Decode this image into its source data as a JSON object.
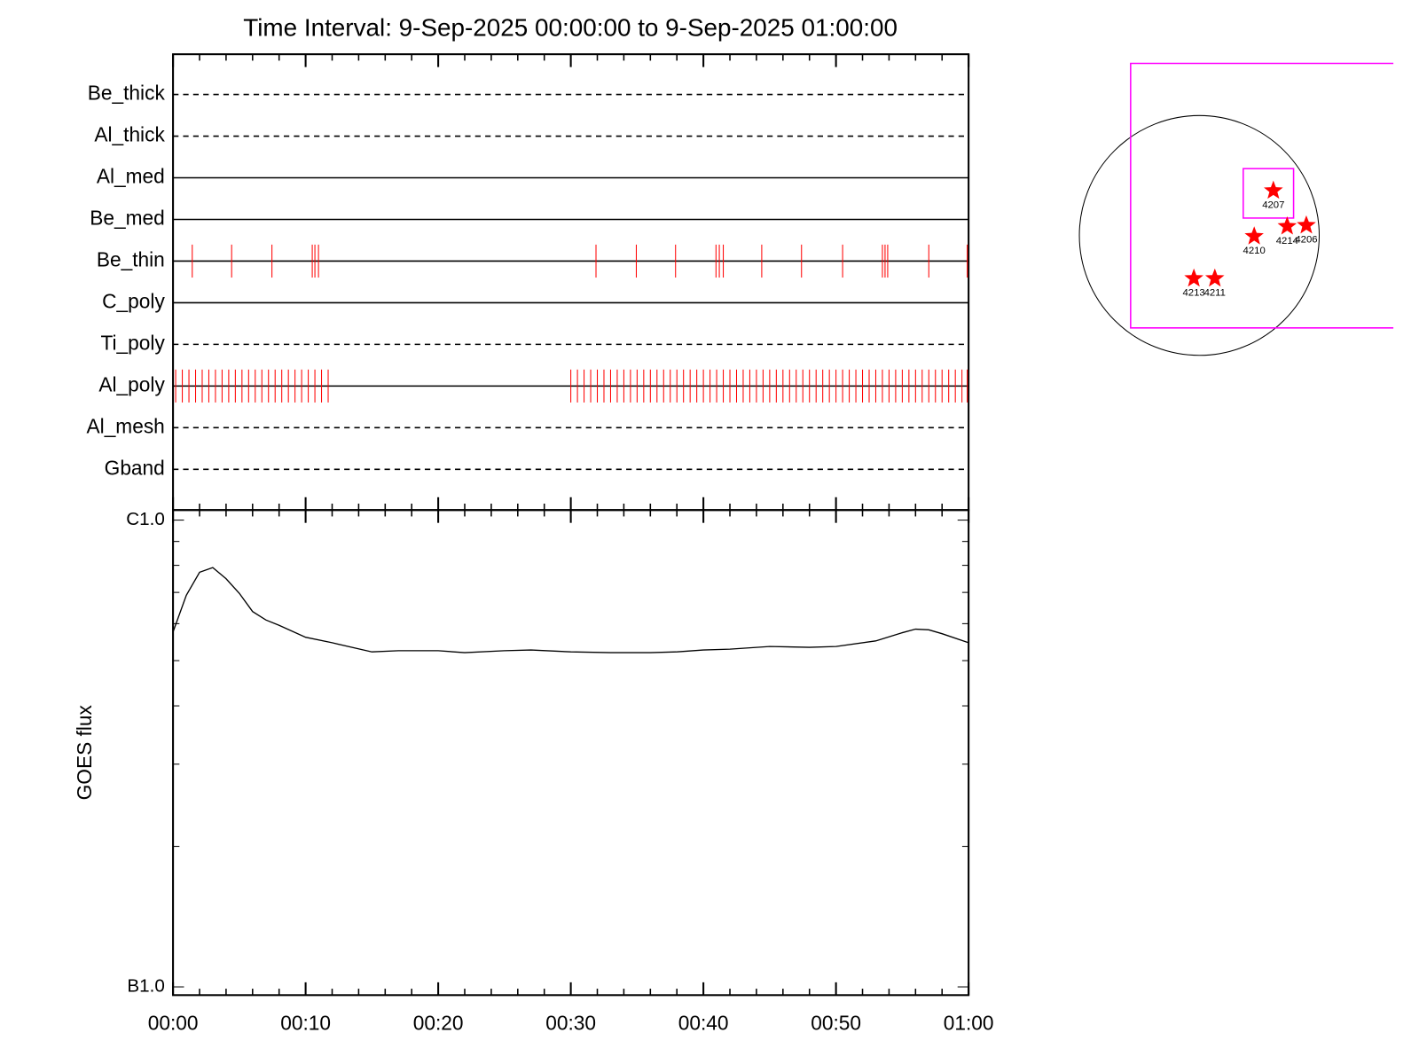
{
  "chart_data": [
    {
      "type": "event",
      "title": "Time Interval:  9-Sep-2025 00:00:00 to  9-Sep-2025 01:00:00",
      "xlim": [
        0,
        60
      ],
      "xticks": [
        0,
        10,
        20,
        30,
        40,
        50,
        60
      ],
      "xminorticks": [
        2,
        4,
        6,
        8,
        12,
        14,
        16,
        18,
        22,
        24,
        26,
        28,
        32,
        34,
        36,
        38,
        42,
        44,
        46,
        48,
        52,
        54,
        56,
        58
      ],
      "color": "#ff0000",
      "series": [
        {
          "name": "Be_thick",
          "line_style": "dashed",
          "values": []
        },
        {
          "name": "Al_thick",
          "line_style": "dashed",
          "values": []
        },
        {
          "name": "Al_med",
          "line_style": "solid",
          "values": []
        },
        {
          "name": "Be_med",
          "line_style": "solid",
          "values": []
        },
        {
          "name": "Be_thin",
          "line_style": "solid",
          "values": [
            1.45,
            4.42,
            7.46,
            10.5,
            10.7,
            10.97,
            31.9,
            34.94,
            37.9,
            40.95,
            41.2,
            41.5,
            44.4,
            47.4,
            50.5,
            53.5,
            53.7,
            53.9,
            57.0,
            59.9
          ]
        },
        {
          "name": "C_poly",
          "line_style": "solid",
          "values": []
        },
        {
          "name": "Ti_poly",
          "line_style": "dashed",
          "values": []
        },
        {
          "name": "Al_poly",
          "line_style": "solid",
          "values": [
            0.2,
            0.7,
            1.2,
            1.7,
            2.2,
            2.7,
            3.2,
            3.7,
            4.2,
            4.7,
            5.2,
            5.7,
            6.2,
            6.7,
            7.2,
            7.7,
            8.2,
            8.7,
            9.2,
            9.7,
            10.2,
            10.7,
            11.2,
            11.7,
            30.0,
            30.5,
            31.0,
            31.5,
            32.0,
            32.5,
            33.0,
            33.5,
            34.0,
            34.5,
            35.0,
            35.5,
            36.0,
            36.5,
            37.0,
            37.5,
            38.0,
            38.5,
            39.0,
            39.5,
            40.0,
            40.5,
            41.0,
            41.5,
            42.0,
            42.5,
            43.0,
            43.5,
            44.0,
            44.5,
            45.0,
            45.5,
            46.0,
            46.5,
            47.0,
            47.5,
            48.0,
            48.5,
            49.0,
            49.5,
            50.0,
            50.5,
            51.0,
            51.5,
            52.0,
            52.5,
            53.0,
            53.5,
            54.0,
            54.5,
            55.0,
            55.5,
            56.0,
            56.5,
            57.0,
            57.5,
            58.0,
            58.5,
            59.0,
            59.5,
            59.9
          ]
        },
        {
          "name": "Al_mesh",
          "line_style": "dashed",
          "values": []
        },
        {
          "name": "Gband",
          "line_style": "dashed",
          "values": []
        }
      ]
    },
    {
      "type": "line",
      "y_label": "GOES flux",
      "log_y": true,
      "color": "#000000",
      "x": [
        0,
        1,
        2,
        3,
        4,
        5,
        6,
        7,
        8,
        10,
        12,
        15,
        17,
        20,
        22,
        25,
        27,
        30,
        33,
        36,
        38,
        40,
        42,
        45,
        48,
        50,
        53,
        55,
        56,
        57,
        58,
        60
      ],
      "values": [
        5.76e-07,
        6.9e-07,
        7.73e-07,
        7.91e-07,
        7.49e-07,
        6.97e-07,
        6.37e-07,
        6.11e-07,
        5.95e-07,
        5.61e-07,
        5.46e-07,
        5.22e-07,
        5.25e-07,
        5.25e-07,
        5.2e-07,
        5.25e-07,
        5.27e-07,
        5.22e-07,
        5.2e-07,
        5.2e-07,
        5.22e-07,
        5.27e-07,
        5.29e-07,
        5.36e-07,
        5.34e-07,
        5.36e-07,
        5.51e-07,
        5.74e-07,
        5.84e-07,
        5.82e-07,
        5.71e-07,
        5.46e-07
      ],
      "xlim": [
        0,
        60
      ],
      "xticks": [
        {
          "value": 0,
          "label": "00:00"
        },
        {
          "value": 10,
          "label": "00:10"
        },
        {
          "value": 20,
          "label": "00:20"
        },
        {
          "value": 30,
          "label": "00:30"
        },
        {
          "value": 40,
          "label": "00:40"
        },
        {
          "value": 50,
          "label": "00:50"
        },
        {
          "value": 60,
          "label": "01:00"
        }
      ],
      "xminorticks": [
        2,
        4,
        6,
        8,
        12,
        14,
        16,
        18,
        22,
        24,
        26,
        28,
        32,
        34,
        36,
        38,
        42,
        44,
        46,
        48,
        52,
        54,
        56,
        58
      ],
      "ylim": [
        1e-07,
        1e-06
      ],
      "yticks": [
        {
          "value": 1e-07,
          "label": "B1.0"
        },
        {
          "value": 1e-06,
          "label": "C1.0"
        }
      ],
      "yminorticks": [
        2e-07,
        3e-07,
        4e-07,
        5e-07,
        6e-07,
        7e-07,
        8e-07,
        9e-07
      ]
    },
    {
      "type": "map",
      "color": "#ff0000",
      "regions": [
        {
          "label": "4207",
          "x": 587,
          "y": 355
        },
        {
          "label": "4210",
          "x": 435,
          "y": -7
        },
        {
          "label": "4214",
          "x": 696,
          "y": 72
        },
        {
          "label": "4206",
          "x": 848,
          "y": 80
        },
        {
          "label": "4213",
          "x": -43,
          "y": -341
        },
        {
          "label": "4211",
          "x": 123,
          "y": -341
        }
      ]
    }
  ]
}
